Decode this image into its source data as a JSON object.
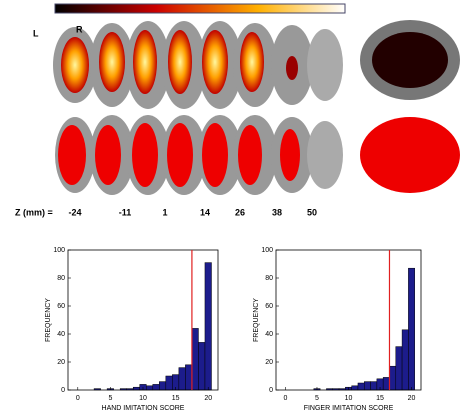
{
  "figure": {
    "left_label": "L",
    "right_label": "R",
    "z_label": "Z (mm) =",
    "z_values": [
      "-24",
      "-11",
      "1",
      "14",
      "26",
      "38",
      "50"
    ]
  },
  "chart_data": [
    {
      "type": "histogram",
      "xlabel": "HAND IMITATION SCORE",
      "ylabel": "FREQUENCY",
      "bins": [
        2.5,
        3.5,
        4.5,
        5.5,
        6.5,
        7.5,
        8.5,
        9.5,
        10.5,
        11.5,
        12.5,
        13.5,
        14.5,
        15.5,
        16.5,
        17.5,
        18.5,
        19.5,
        20.5
      ],
      "values": [
        1,
        0,
        1,
        0,
        1,
        1,
        2,
        4,
        3,
        4,
        6,
        10,
        11,
        16,
        18,
        44,
        34,
        91
      ],
      "color": "#1c1c8c",
      "threshold": 17.5,
      "threshold_color": "#e02020",
      "xlim": [
        -1.5,
        21.5
      ],
      "xticks": [
        0,
        5,
        10,
        15,
        20
      ],
      "ylim": [
        0,
        100
      ],
      "yticks": [
        0,
        20,
        40,
        60,
        80,
        100
      ]
    },
    {
      "type": "histogram",
      "xlabel": "FINGER IMITATION SCORE",
      "ylabel": "FREQUENCY",
      "bins": [
        2.5,
        3.5,
        4.5,
        5.5,
        6.5,
        7.5,
        8.5,
        9.5,
        10.5,
        11.5,
        12.5,
        13.5,
        14.5,
        15.5,
        16.5,
        17.5,
        18.5,
        19.5,
        20.5
      ],
      "values": [
        0,
        0,
        1,
        0,
        1,
        1,
        1,
        2,
        3,
        5,
        6,
        6,
        8,
        9,
        17,
        31,
        43,
        87
      ],
      "color": "#1c1c8c",
      "threshold": 16.5,
      "threshold_color": "#e02020",
      "xlim": [
        -1.5,
        21.5
      ],
      "xticks": [
        0,
        5,
        10,
        15,
        20
      ],
      "ylim": [
        0,
        100
      ],
      "yticks": [
        0,
        20,
        40,
        60,
        80,
        100
      ]
    }
  ]
}
